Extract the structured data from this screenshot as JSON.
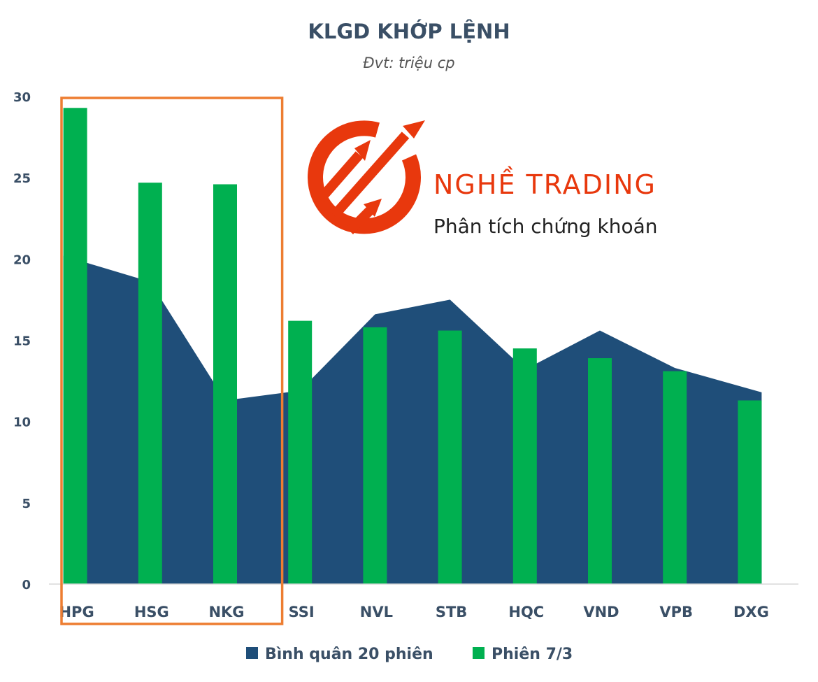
{
  "chart_data": {
    "type": "bar",
    "title": "KLGD KHỚP LỆNH",
    "subtitle": "Đvt: triệu cp",
    "categories": [
      "HPG",
      "HSG",
      "NKG",
      "SSI",
      "NVL",
      "STB",
      "HQC",
      "VND",
      "VPB",
      "DXG"
    ],
    "series": [
      {
        "name": "Bình quân 20 phiên",
        "render": "area",
        "values": [
          20.2,
          18.6,
          11.3,
          11.9,
          16.6,
          17.5,
          13.2,
          15.6,
          13.3,
          11.8
        ]
      },
      {
        "name": "Phiên 7/3",
        "render": "bar",
        "values": [
          29.3,
          24.7,
          24.6,
          16.2,
          15.8,
          15.6,
          14.5,
          13.9,
          13.1,
          11.3
        ]
      }
    ],
    "ylim": [
      0,
      30
    ],
    "yticks": [
      0,
      5,
      10,
      15,
      20,
      25,
      30
    ],
    "grid": false,
    "legend_position": "bottom",
    "highlight_categories": [
      "HPG",
      "HSG",
      "NKG"
    ],
    "colors": {
      "area": "#1f4e79",
      "bar": "#00b050",
      "highlight_box": "#ed7d31",
      "text": "#3a4f66",
      "axis": "#d9d9d9"
    }
  },
  "watermark": {
    "brand": "NGHỀ TRADING",
    "tagline": "Phân tích chứng khoán",
    "color": "#e8380d",
    "tagline_color": "#222222"
  }
}
